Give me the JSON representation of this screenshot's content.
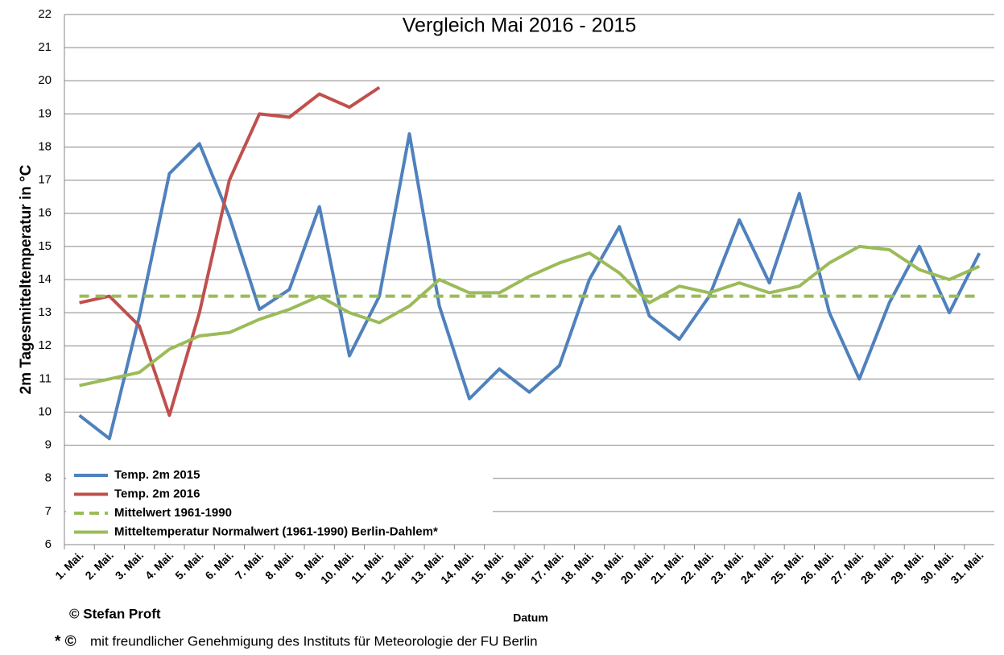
{
  "chart_data": {
    "type": "line",
    "title": "Vergleich Mai 2016 - 2015",
    "ylabel": "2m Tagesmitteltemperatur in °C",
    "xlabel": "Datum",
    "credit": "© Stefan Proft",
    "footnote_mark": "* ©",
    "footnote": "mit freundlicher Genehmigung des Instituts für Meteorologie der FU Berlin",
    "categories": [
      "1. Mai.",
      "2. Mai.",
      "3. Mai.",
      "4. Mai.",
      "5. Mai.",
      "6. Mai.",
      "7. Mai.",
      "8. Mai.",
      "9. Mai.",
      "10. Mai.",
      "11. Mai.",
      "12. Mai.",
      "13. Mai.",
      "14. Mai.",
      "15. Mai.",
      "16. Mai.",
      "17. Mai.",
      "18. Mai.",
      "19. Mai.",
      "20. Mai.",
      "21. Mai.",
      "22. Mai.",
      "23. Mai.",
      "24. Mai.",
      "25. Mai.",
      "26. Mai.",
      "27. Mai.",
      "28. Mai.",
      "29. Mai.",
      "30. Mai.",
      "31. Mai."
    ],
    "series": [
      {
        "name": "Temp. 2m 2015",
        "color": "#4f81bd",
        "dashed": false,
        "values": [
          9.9,
          9.2,
          12.9,
          17.2,
          18.1,
          15.9,
          13.1,
          13.7,
          16.2,
          11.7,
          13.5,
          18.4,
          13.2,
          10.4,
          11.3,
          10.6,
          11.4,
          14.0,
          15.6,
          12.9,
          12.2,
          13.5,
          15.8,
          13.9,
          16.6,
          13.0,
          11.0,
          13.3,
          15.0,
          13.0,
          14.8
        ]
      },
      {
        "name": "Temp. 2m 2016",
        "color": "#c0504d",
        "dashed": false,
        "values": [
          13.3,
          13.5,
          12.6,
          9.9,
          13.0,
          17.0,
          19.0,
          18.9,
          19.6,
          19.2,
          19.8,
          null,
          null,
          null,
          null,
          null,
          null,
          null,
          null,
          null,
          null,
          null,
          null,
          null,
          null,
          null,
          null,
          null,
          null,
          null,
          null
        ]
      },
      {
        "name": "Mittelwert 1961-1990",
        "color": "#9bbb59",
        "dashed": true,
        "values": [
          13.5,
          13.5,
          13.5,
          13.5,
          13.5,
          13.5,
          13.5,
          13.5,
          13.5,
          13.5,
          13.5,
          13.5,
          13.5,
          13.5,
          13.5,
          13.5,
          13.5,
          13.5,
          13.5,
          13.5,
          13.5,
          13.5,
          13.5,
          13.5,
          13.5,
          13.5,
          13.5,
          13.5,
          13.5,
          13.5,
          13.5
        ]
      },
      {
        "name": "Mitteltemperatur Normalwert (1961-1990) Berlin-Dahlem*",
        "color": "#9bbb59",
        "dashed": false,
        "values": [
          10.8,
          11.0,
          11.2,
          11.9,
          12.3,
          12.4,
          12.8,
          13.1,
          13.5,
          13.0,
          12.7,
          13.2,
          14.0,
          13.6,
          13.6,
          14.1,
          14.5,
          14.8,
          14.2,
          13.3,
          13.8,
          13.6,
          13.9,
          13.6,
          13.8,
          14.5,
          15.0,
          14.9,
          14.3,
          14.0,
          14.4
        ]
      }
    ],
    "ylim": [
      6,
      22
    ],
    "yticks": [
      6,
      7,
      8,
      9,
      10,
      11,
      12,
      13,
      14,
      15,
      16,
      17,
      18,
      19,
      20,
      21,
      22
    ],
    "grid": true,
    "legend": "lower left"
  }
}
